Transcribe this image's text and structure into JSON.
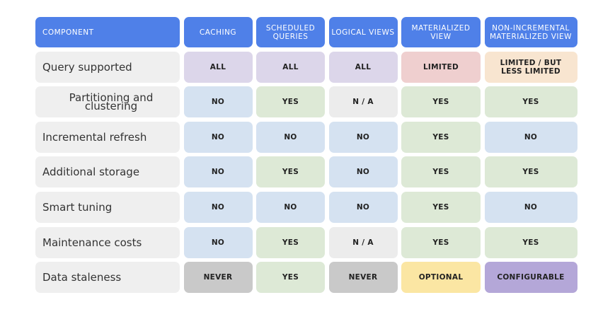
{
  "headers": [
    "COMPONENT",
    "CACHING",
    "SCHEDULED QUERIES",
    "LOGICAL VIEWS",
    "MATERIALIZED VIEW",
    "NON-INCREMENTAL MATERIALIZED VIEW"
  ],
  "header_color": "#4f80e8",
  "rows": [
    {
      "label": "Query supported",
      "cells": [
        {
          "v": "ALL",
          "c": "#dcd6ea"
        },
        {
          "v": "ALL",
          "c": "#dcd6ea"
        },
        {
          "v": "ALL",
          "c": "#dcd6ea"
        },
        {
          "v": "LIMITED",
          "c": "#efcfcf"
        },
        {
          "v": "LIMITED / BUT LESS LIMITED",
          "c": "#f8e5d0"
        }
      ]
    },
    {
      "label": "Partitioning and clustering",
      "cells": [
        {
          "v": "NO",
          "c": "#d5e2f1"
        },
        {
          "v": "YES",
          "c": "#dde9d6"
        },
        {
          "v": "N / A",
          "c": "#ececec"
        },
        {
          "v": "YES",
          "c": "#dde9d6"
        },
        {
          "v": "YES",
          "c": "#dde9d6"
        }
      ]
    },
    {
      "label": "Incremental refresh",
      "cells": [
        {
          "v": "NO",
          "c": "#d5e2f1"
        },
        {
          "v": "NO",
          "c": "#d5e2f1"
        },
        {
          "v": "NO",
          "c": "#d5e2f1"
        },
        {
          "v": "YES",
          "c": "#dde9d6"
        },
        {
          "v": "NO",
          "c": "#d5e2f1"
        }
      ]
    },
    {
      "label": "Additional storage",
      "cells": [
        {
          "v": "NO",
          "c": "#d5e2f1"
        },
        {
          "v": "YES",
          "c": "#dde9d6"
        },
        {
          "v": "NO",
          "c": "#d5e2f1"
        },
        {
          "v": "YES",
          "c": "#dde9d6"
        },
        {
          "v": "YES",
          "c": "#dde9d6"
        }
      ]
    },
    {
      "label": "Smart tuning",
      "cells": [
        {
          "v": "NO",
          "c": "#d5e2f1"
        },
        {
          "v": "NO",
          "c": "#d5e2f1"
        },
        {
          "v": "NO",
          "c": "#d5e2f1"
        },
        {
          "v": "YES",
          "c": "#dde9d6"
        },
        {
          "v": "NO",
          "c": "#d5e2f1"
        }
      ]
    },
    {
      "label": "Maintenance costs",
      "cells": [
        {
          "v": "NO",
          "c": "#d5e2f1"
        },
        {
          "v": "YES",
          "c": "#dde9d6"
        },
        {
          "v": "N / A",
          "c": "#ececec"
        },
        {
          "v": "YES",
          "c": "#dde9d6"
        },
        {
          "v": "YES",
          "c": "#dde9d6"
        }
      ]
    },
    {
      "label": "Data staleness",
      "cells": [
        {
          "v": "NEVER",
          "c": "#c9c9c9"
        },
        {
          "v": "YES",
          "c": "#dde9d6"
        },
        {
          "v": "NEVER",
          "c": "#c9c9c9"
        },
        {
          "v": "OPTIONAL",
          "c": "#fbe6a3"
        },
        {
          "v": "CONFIGURABLE",
          "c": "#b4a7d8"
        }
      ]
    }
  ]
}
